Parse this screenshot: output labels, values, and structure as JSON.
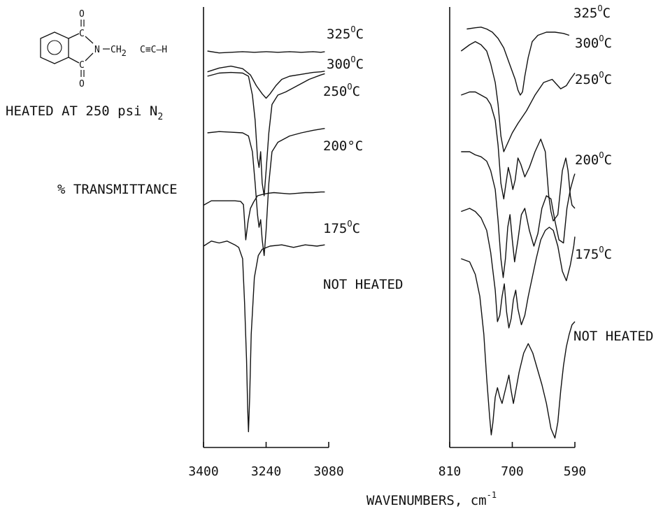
{
  "structure": {
    "atom_o_top": "O",
    "atom_c_top": "C",
    "atom_n": "N",
    "chain": "CH",
    "chain_sub": "2",
    "triple": "C≡C–H",
    "atom_c_bottom": "C",
    "atom_o_bottom": "O"
  },
  "heated_note": {
    "text": "HEATED AT 250 psi N",
    "subscript": "2"
  },
  "chart_data": {
    "type": "line",
    "ylabel": "% TRANSMITTANCE",
    "xlabel": "WAVENUMBERS, cm",
    "xlabel_superscript": "-1",
    "panels": [
      {
        "name": "left",
        "xlim": [
          3400,
          3080
        ],
        "xticks": [
          "3400",
          "3240",
          "3080"
        ],
        "series": [
          {
            "label": "325",
            "label_sup": "O",
            "label_unit": "C",
            "x": [
              3390,
              3360,
              3330,
              3300,
              3270,
              3240,
              3210,
              3180,
              3150,
              3120,
              3100,
              3090
            ],
            "y": [
              630,
              627,
              628,
              629,
              628,
              629,
              628,
              629,
              628,
              629,
              628,
              629
            ]
          },
          {
            "label": "300",
            "label_sup": "O",
            "label_unit": "C",
            "x": [
              3390,
              3360,
              3330,
              3300,
              3280,
              3265,
              3250,
              3240,
              3230,
              3215,
              3200,
              3180,
              3150,
              3120,
              3100,
              3090
            ],
            "y": [
              597,
              603,
              606,
              602,
              592,
              575,
              562,
              555,
              562,
              575,
              585,
              590,
              593,
              596,
              597,
              598
            ]
          },
          {
            "label": "250",
            "label_sup": "O",
            "label_unit": "C",
            "x": [
              3390,
              3360,
              3330,
              3300,
              3285,
              3275,
              3268,
              3262,
              3258,
              3254,
              3250,
              3245,
              3240,
              3233,
              3225,
              3210,
              3190,
              3160,
              3130,
              3100,
              3090
            ],
            "y": [
              590,
              595,
              596,
              595,
              590,
              560,
              520,
              460,
              445,
              470,
              420,
              400,
              440,
              500,
              545,
              560,
              565,
              575,
              585,
              592,
              594
            ]
          },
          {
            "label": "200",
            "label_sup": "",
            "label_unit": "°C",
            "x": [
              3390,
              3360,
              3330,
              3300,
              3285,
              3275,
              3268,
              3262,
              3258,
              3254,
              3250,
              3245,
              3240,
              3233,
              3225,
              3210,
              3180,
              3150,
              3120,
              3100,
              3090
            ],
            "y": [
              500,
              502,
              501,
              500,
              495,
              470,
              420,
              370,
              350,
              362,
              330,
              305,
              345,
              420,
              470,
              485,
              495,
              500,
              504,
              506,
              507
            ]
          },
          {
            "label": "175",
            "label_sup": "O",
            "label_unit": "C",
            "x": [
              3400,
              3380,
              3360,
              3340,
              3320,
              3305,
              3298,
              3292,
              3286,
              3280,
              3272,
              3262,
              3250,
              3235,
              3220,
              3200,
              3180,
              3160,
              3140,
              3120,
              3100,
              3090
            ],
            "y": [
              385,
              392,
              392,
              392,
              392,
              391,
              386,
              330,
              360,
              380,
              390,
              400,
              402,
              404,
              405,
              404,
              403,
              404,
              405,
              405,
              406,
              406
            ]
          },
          {
            "label": "NOT HEATED",
            "label_sup": "",
            "label_unit": "",
            "x": [
              3400,
              3380,
              3360,
              3340,
              3320,
              3310,
              3300,
              3295,
              3290,
              3287,
              3285,
              3282,
              3278,
              3270,
              3260,
              3250,
              3230,
              3200,
              3170,
              3140,
              3110,
              3090
            ],
            "y": [
              320,
              328,
              325,
              328,
              322,
              318,
              300,
              230,
              140,
              60,
              25,
              80,
              180,
              270,
              305,
              315,
              320,
              322,
              318,
              322,
              320,
              322
            ]
          }
        ]
      },
      {
        "name": "right",
        "xlim": [
          810,
          590
        ],
        "xticks": [
          "810",
          "700",
          "590"
        ],
        "series": [
          {
            "label": "325",
            "label_sup": "O",
            "label_unit": "C",
            "x": [
              780,
              765,
              755,
              745,
              735,
              725,
              715,
              705,
              695,
              690,
              686,
              682,
              678,
              672,
              665,
              655,
              640,
              625,
              610,
              600
            ],
            "y": [
              665,
              667,
              668,
              665,
              660,
              650,
              635,
              610,
              585,
              568,
              560,
              565,
              590,
              620,
              645,
              655,
              660,
              660,
              658,
              655
            ]
          },
          {
            "label": "300",
            "label_sup": "O",
            "label_unit": "C",
            "x": [
              790,
              775,
              765,
              755,
              745,
              738,
              730,
              725,
              720,
              715,
              710,
              700,
              690,
              675,
              660,
              645,
              630,
              615,
              605,
              598,
              590
            ],
            "y": [
              630,
              640,
              645,
              640,
              630,
              610,
              580,
              545,
              495,
              470,
              480,
              500,
              515,
              535,
              560,
              580,
              585,
              570,
              575,
              585,
              595
            ]
          },
          {
            "label": "250",
            "label_sup": "O",
            "label_unit": "C",
            "x": [
              790,
              775,
              765,
              755,
              745,
              738,
              730,
              725,
              720,
              715,
              711,
              707,
              703,
              699,
              695,
              690,
              685,
              678,
              670,
              660,
              650,
              642,
              636,
              632,
              628,
              620,
              612,
              606,
              602,
              598,
              595,
              590
            ],
            "y": [
              560,
              565,
              565,
              560,
              555,
              545,
              520,
              480,
              420,
              395,
              420,
              445,
              430,
              410,
              425,
              460,
              450,
              430,
              445,
              470,
              490,
              470,
              400,
              375,
              360,
              370,
              440,
              460,
              440,
              400,
              385,
              380
            ]
          },
          {
            "label": "200",
            "label_sup": "O",
            "label_unit": "C",
            "x": [
              790,
              775,
              765,
              755,
              745,
              738,
              730,
              725,
              720,
              716,
              712,
              708,
              704,
              700,
              696,
              690,
              684,
              678,
              670,
              662,
              655,
              648,
              640,
              632,
              625,
              618,
              610,
              604,
              598,
              592,
              590
            ],
            "y": [
              470,
              470,
              465,
              462,
              455,
              440,
              410,
              360,
              300,
              270,
              300,
              350,
              370,
              330,
              295,
              330,
              370,
              380,
              345,
              320,
              340,
              380,
              400,
              395,
              360,
              330,
              325,
              380,
              410,
              430,
              435
            ]
          },
          {
            "label": "175",
            "label_sup": "O",
            "label_unit": "C",
            "x": [
              790,
              775,
              765,
              755,
              745,
              738,
              730,
              726,
              722,
              718,
              714,
              710,
              706,
              702,
              698,
              694,
              690,
              684,
              678,
              672,
              665,
              658,
              650,
              642,
              635,
              628,
              620,
              612,
              605,
              598,
              592,
              590
            ],
            "y": [
              375,
              380,
              375,
              365,
              345,
              310,
              250,
              200,
              210,
              240,
              260,
              215,
              190,
              205,
              235,
              250,
              220,
              195,
              210,
              240,
              270,
              300,
              330,
              345,
              350,
              345,
              320,
              280,
              265,
              290,
              320,
              335
            ]
          },
          {
            "label": "NOT HEATED",
            "label_sup": "",
            "label_unit": "",
            "x": [
              790,
              775,
              765,
              757,
              750,
              745,
              740,
              737,
              734,
              730,
              726,
              722,
              718,
              714,
              710,
              706,
              702,
              698,
              694,
              688,
              680,
              672,
              664,
              656,
              648,
              640,
              632,
              625,
              620,
              615,
              610,
              605,
              600,
              595,
              590
            ],
            "y": [
              300,
              295,
              275,
              240,
              180,
              110,
              50,
              20,
              40,
              80,
              95,
              80,
              70,
              85,
              100,
              115,
              90,
              70,
              90,
              120,
              150,
              165,
              150,
              125,
              100,
              70,
              30,
              15,
              40,
              90,
              130,
              160,
              180,
              195,
              200
            ]
          }
        ]
      }
    ]
  }
}
